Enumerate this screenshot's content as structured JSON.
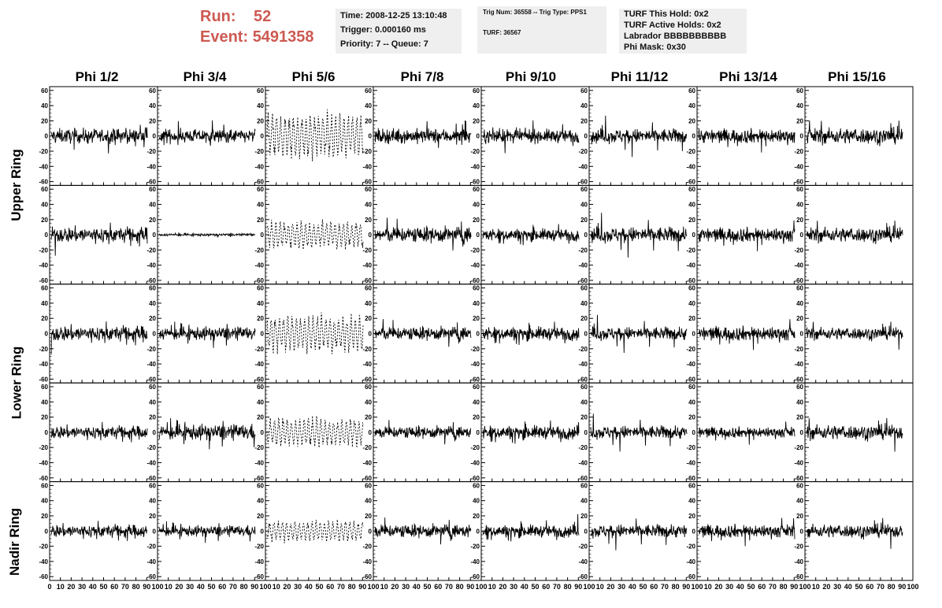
{
  "header": {
    "run_label": "Run:",
    "run_value": "52",
    "event_label": "Event:",
    "event_value": "5491358",
    "time": "Time: 2008-12-25 13:10:48",
    "trigger": "Trigger: 0.000160 ms",
    "priority": "Priority: 7 -- Queue: 7",
    "trig_num": "Trig Num: 36558 -- Trig Type: PPS1",
    "turf": "TURF: 36567",
    "turf_this_hold": "TURF This Hold: 0x2",
    "turf_active_holds": "TURF Active Holds: 0x2",
    "labrador": "Labrador BBBBBBBBBB",
    "phi_mask": "Phi Mask: 0x30"
  },
  "columns": [
    "Phi 1/2",
    "Phi 3/4",
    "Phi 5/6",
    "Phi 7/8",
    "Phi 9/10",
    "Phi 11/12",
    "Phi 13/14",
    "Phi 15/16"
  ],
  "ring_labels": [
    {
      "id": "upper",
      "text": "Upper Ring"
    },
    {
      "id": "lower",
      "text": "Lower Ring"
    },
    {
      "id": "nadir",
      "text": "Nadir Ring"
    }
  ],
  "chart_data": {
    "type": "line",
    "title": "",
    "xlabel": "",
    "ylabel": "",
    "xlim": [
      0,
      100
    ],
    "ylim": [
      -65,
      65
    ],
    "x_ticks": [
      0,
      10,
      20,
      30,
      40,
      50,
      60,
      70,
      80,
      90,
      100
    ],
    "x_tick_labels": [
      "0",
      "10",
      "20",
      "30",
      "40",
      "50",
      "60",
      "70",
      "80",
      "90",
      "100"
    ],
    "y_ticks": [
      -60,
      -40,
      -20,
      0,
      20,
      40,
      60
    ],
    "y_tick_labels": [
      "-60",
      "-40",
      "-20",
      "0",
      "20",
      "40",
      "60"
    ],
    "grid": false,
    "layout": "5 rows x 8 columns of waveform panels",
    "dashed_column": "Phi 5/6",
    "panel_amplitude": [
      [
        12,
        11,
        28,
        12,
        11,
        12,
        12,
        13
      ],
      [
        13,
        2,
        18,
        13,
        10,
        13,
        12,
        12
      ],
      [
        13,
        11,
        24,
        11,
        11,
        11,
        12,
        10
      ],
      [
        11,
        13,
        18,
        10,
        11,
        11,
        9,
        12
      ],
      [
        11,
        9,
        13,
        11,
        10,
        11,
        11,
        11
      ]
    ]
  }
}
